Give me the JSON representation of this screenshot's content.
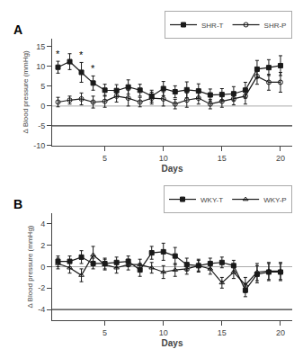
{
  "chart_data": [
    {
      "type": "line",
      "title": "A",
      "xlabel": "Days",
      "ylabel": "Δ Blood pressure (mmHg)",
      "xlim": [
        0.5,
        21
      ],
      "xticks": [
        5,
        10,
        15,
        20
      ],
      "ylim": [
        -10,
        17
      ],
      "yticks": [
        -10,
        -5,
        0,
        5,
        10,
        15
      ],
      "grid": false,
      "legend": "upper right",
      "reference_lines": [
        {
          "y": 0,
          "color": "#aaaaaa"
        },
        {
          "y": -5,
          "color": "#000000"
        }
      ],
      "series": [
        {
          "name": "SHR-T",
          "color": "#1a1a1a",
          "marker": "square",
          "x": [
            1,
            2,
            3,
            4,
            5,
            6,
            7,
            8,
            9,
            10,
            11,
            12,
            13,
            14,
            15,
            16,
            17,
            18,
            19,
            20
          ],
          "values": [
            9.8,
            11.2,
            8.5,
            5.8,
            4.0,
            3.9,
            4.8,
            4.0,
            2.5,
            4.4,
            3.6,
            4.1,
            3.8,
            2.8,
            2.9,
            3.1,
            4.0,
            9.3,
            9.7,
            10.2
          ],
          "errors": [
            1.5,
            2.0,
            2.5,
            1.8,
            1.5,
            1.5,
            1.8,
            1.5,
            1.5,
            1.8,
            1.5,
            2.0,
            1.8,
            1.5,
            1.5,
            1.8,
            2.0,
            2.2,
            2.0,
            2.5
          ]
        },
        {
          "name": "SHR-P",
          "color": "#1a1a1a",
          "marker": "circle-open",
          "x": [
            1,
            2,
            3,
            4,
            5,
            6,
            7,
            8,
            9,
            10,
            11,
            12,
            13,
            14,
            15,
            16,
            17,
            18,
            19,
            20
          ],
          "values": [
            1.0,
            1.5,
            1.8,
            1.0,
            1.2,
            2.5,
            2.0,
            1.0,
            2.0,
            1.8,
            0.5,
            1.5,
            2.0,
            0.5,
            1.2,
            1.8,
            2.5,
            7.5,
            6.0,
            6.0
          ],
          "errors": [
            1.2,
            1.0,
            1.5,
            1.5,
            1.5,
            1.5,
            2.0,
            1.2,
            1.5,
            1.8,
            1.2,
            1.8,
            1.5,
            1.2,
            1.5,
            1.5,
            2.0,
            2.0,
            2.0,
            2.5
          ]
        }
      ],
      "annotations": [
        {
          "text": "*",
          "series": "SHR-T",
          "x": 1
        },
        {
          "text": "*",
          "series": "SHR-T",
          "x": 3
        },
        {
          "text": "*",
          "series": "SHR-T",
          "x": 4
        }
      ]
    },
    {
      "type": "line",
      "title": "B",
      "xlabel": "Days",
      "ylabel": "Δ Blood pressure (mmHg)",
      "xlim": [
        0.5,
        21
      ],
      "xticks": [
        5,
        10,
        15,
        20
      ],
      "ylim": [
        -5,
        5
      ],
      "yticks": [
        -4,
        -2,
        0,
        2,
        4
      ],
      "grid": false,
      "legend": "upper right",
      "reference_lines": [
        {
          "y": 0,
          "color": "#aaaaaa"
        },
        {
          "y": -4,
          "color": "#000000"
        }
      ],
      "series": [
        {
          "name": "WKY-T",
          "color": "#1a1a1a",
          "marker": "square",
          "x": [
            1,
            2,
            3,
            4,
            5,
            6,
            7,
            8,
            9,
            10,
            11,
            12,
            13,
            14,
            15,
            16,
            17,
            18,
            19,
            20
          ],
          "values": [
            0.5,
            0.5,
            0.9,
            0.3,
            0.3,
            0.4,
            0.5,
            -0.3,
            1.3,
            1.4,
            1.0,
            0.2,
            0.1,
            0.3,
            0.4,
            0.1,
            -2.2,
            -0.7,
            -0.5,
            -0.5
          ],
          "errors": [
            0.5,
            0.5,
            0.6,
            0.5,
            0.5,
            0.5,
            0.5,
            0.6,
            0.6,
            0.8,
            0.8,
            0.6,
            0.6,
            0.5,
            0.5,
            0.5,
            0.6,
            0.8,
            0.8,
            0.8
          ]
        },
        {
          "name": "WKY-P",
          "color": "#1a1a1a",
          "marker": "triangle-up-open",
          "x": [
            1,
            2,
            3,
            4,
            5,
            6,
            7,
            8,
            9,
            10,
            11,
            12,
            13,
            14,
            15,
            16,
            17,
            18,
            19,
            20
          ],
          "values": [
            0.3,
            -0.1,
            -0.8,
            1.1,
            0.2,
            -0.1,
            0.2,
            0.2,
            -0.1,
            -0.5,
            -0.3,
            -0.2,
            0.1,
            -0.2,
            -1.5,
            -0.5,
            -1.7,
            -0.5,
            -0.4,
            -0.4
          ],
          "errors": [
            0.5,
            0.5,
            0.6,
            0.8,
            0.5,
            0.5,
            0.5,
            0.5,
            0.5,
            0.6,
            0.6,
            0.5,
            0.5,
            0.5,
            0.5,
            0.6,
            0.7,
            0.8,
            0.8,
            0.8
          ]
        }
      ]
    }
  ]
}
